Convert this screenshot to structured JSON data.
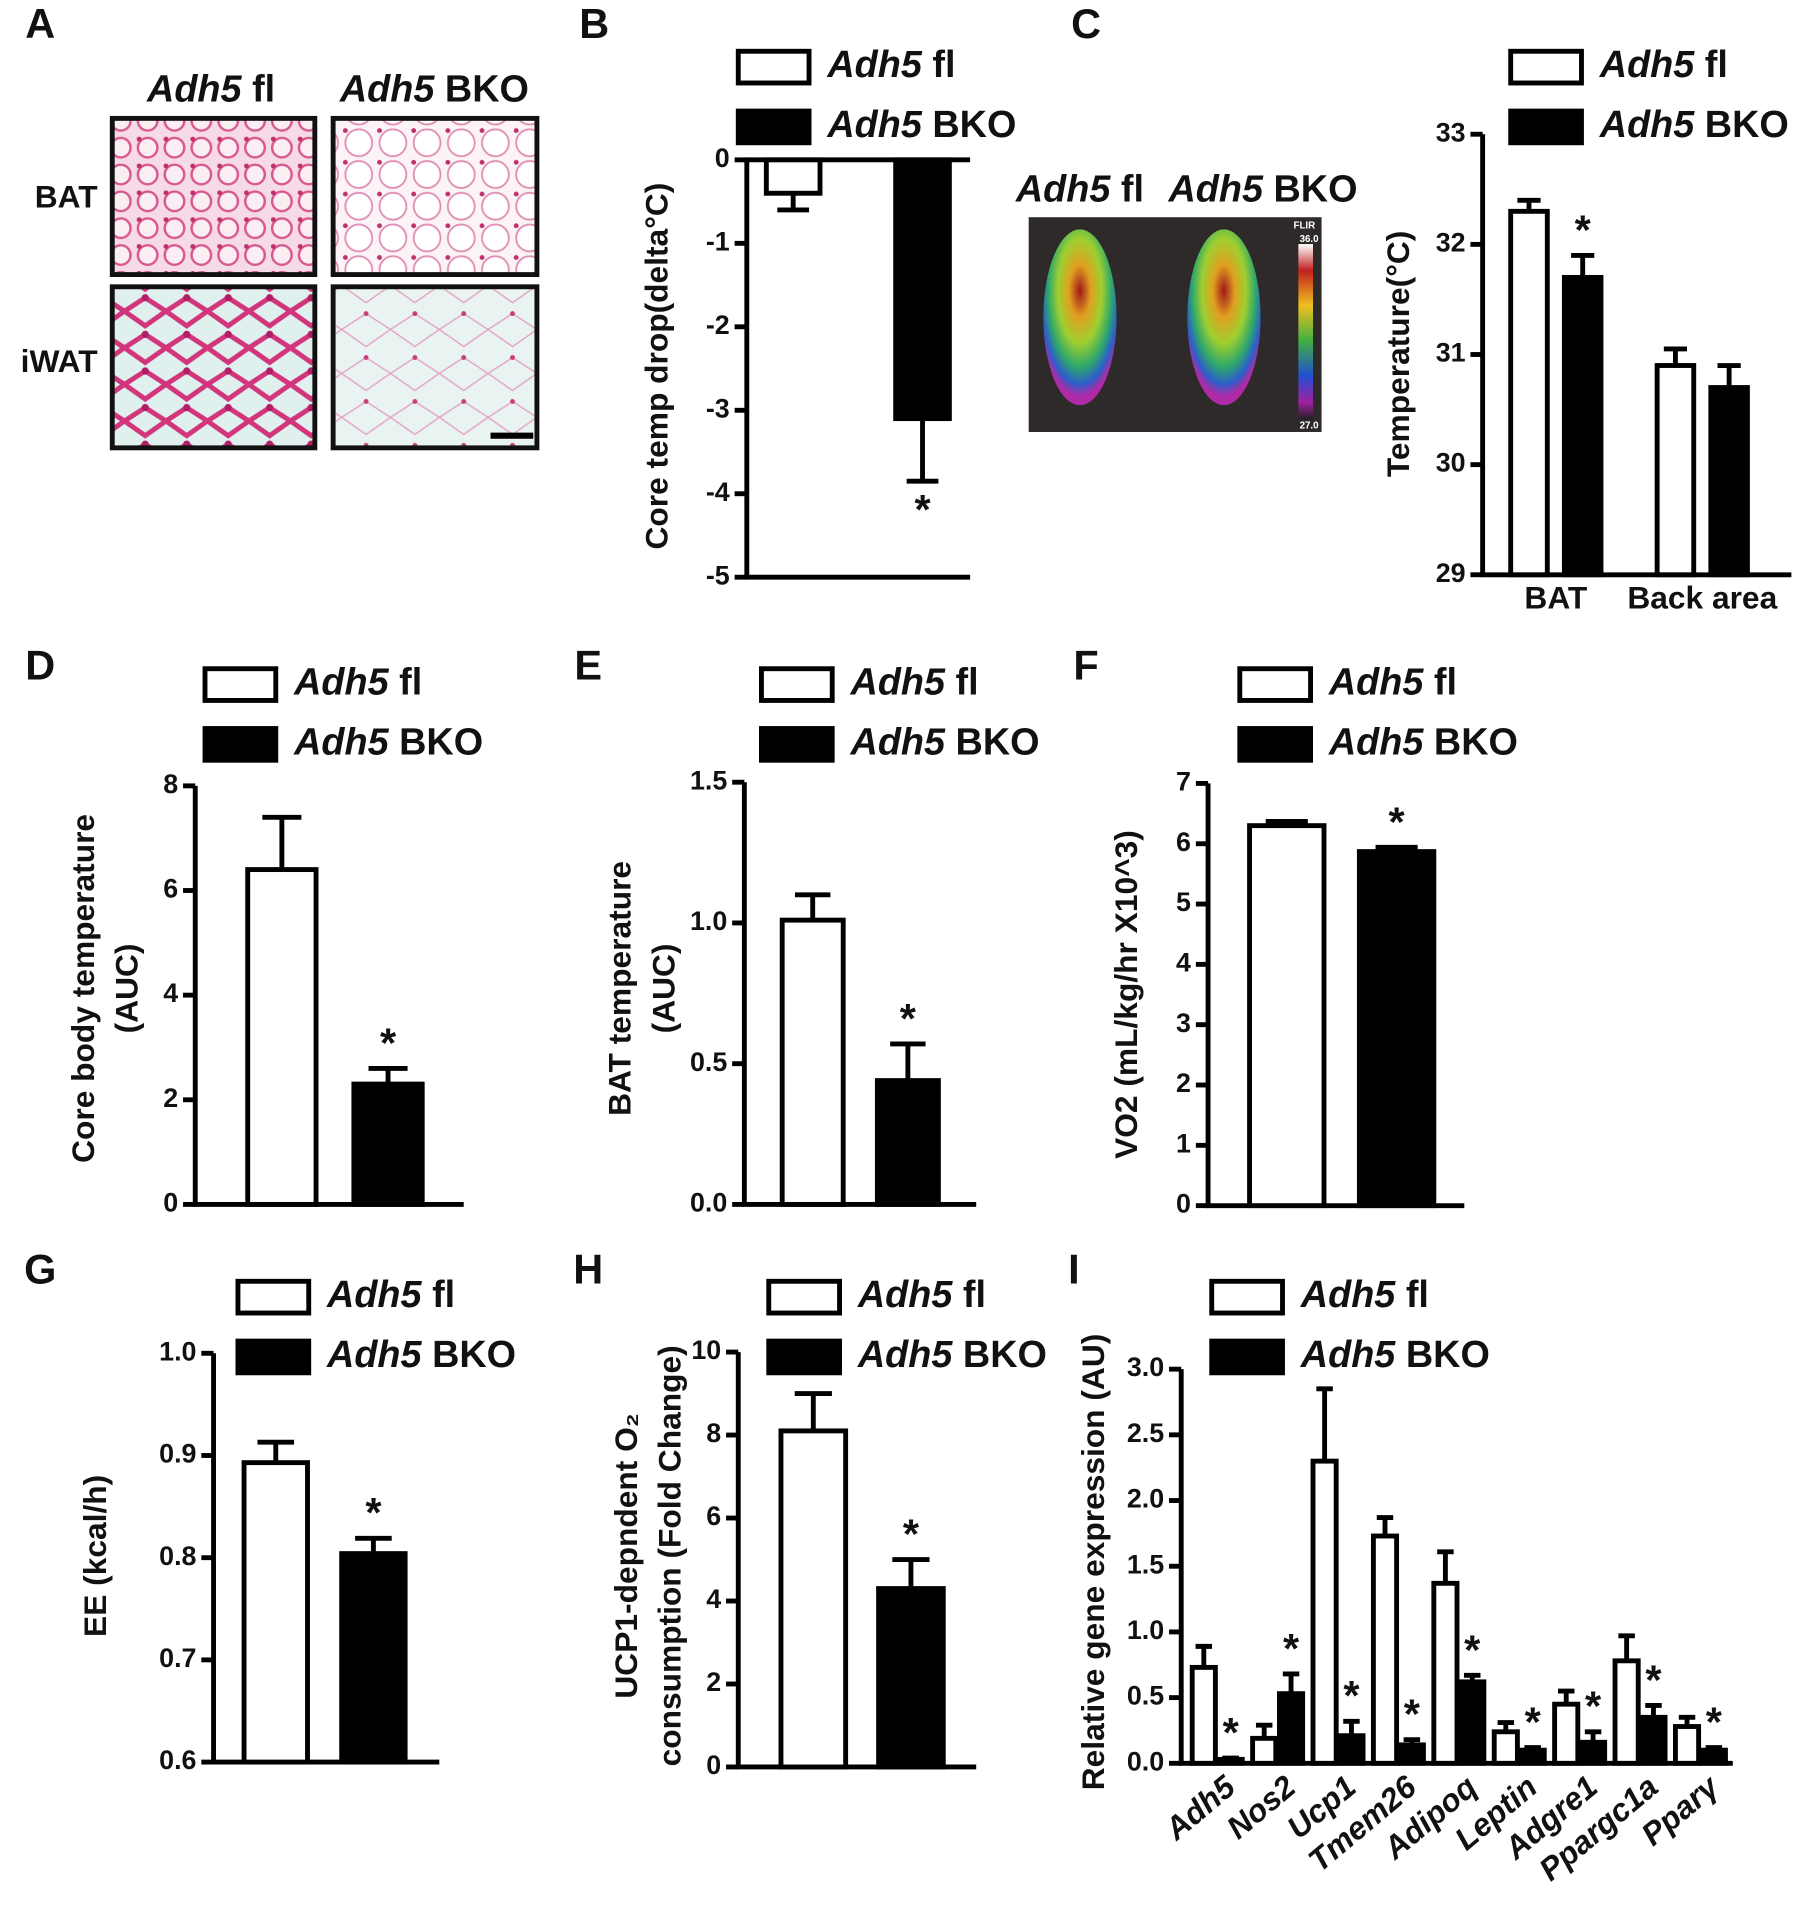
{
  "panel_labels": [
    "A",
    "B",
    "C",
    "D",
    "E",
    "F",
    "G",
    "H",
    "I"
  ],
  "histology": {
    "column_labels": [
      "Adh5 fl",
      "Adh5 BKO"
    ],
    "row_labels": [
      "BAT",
      "iWAT"
    ]
  },
  "thermal_image": {
    "labels": [
      "Adh5 fl",
      "Adh5 BKO"
    ],
    "brand": "FLIR",
    "scale_max": "36.0",
    "scale_min": "27.0"
  },
  "chart_data": [
    {
      "type": "bar",
      "ylabel": "Core temp drop(delta°C)",
      "categories": [
        null
      ],
      "series": [
        {
          "name": "Adh5 fl",
          "color": "#ffffff",
          "values": [
            -0.4
          ],
          "errors": [
            0.2
          ]
        },
        {
          "name": "Adh5 BKO",
          "color": "#000000",
          "values": [
            -3.1
          ],
          "errors": [
            0.75
          ],
          "significance": [
            "*"
          ]
        }
      ],
      "ylim": [
        -5,
        0
      ],
      "yticks": [
        0,
        -1,
        -2,
        -3,
        -4,
        -5
      ]
    },
    {
      "type": "bar",
      "ylabel": "Temperature(°C)",
      "categories": [
        "BAT",
        "Back area"
      ],
      "series": [
        {
          "name": "Adh5 fl",
          "color": "#ffffff",
          "values": [
            32.3,
            30.9
          ],
          "errors": [
            0.1,
            0.15
          ]
        },
        {
          "name": "Adh5 BKO",
          "color": "#000000",
          "values": [
            31.7,
            30.7
          ],
          "errors": [
            0.2,
            0.2
          ],
          "significance": [
            "*",
            null
          ]
        }
      ],
      "ylim": [
        29,
        33
      ],
      "yticks": [
        29,
        30,
        31,
        32,
        33
      ]
    },
    {
      "type": "bar",
      "ylabel": [
        "Core body temperature",
        "(AUC)"
      ],
      "categories": [
        null
      ],
      "series": [
        {
          "name": "Adh5 fl",
          "color": "#ffffff",
          "values": [
            6.4
          ],
          "errors": [
            1.0
          ]
        },
        {
          "name": "Adh5 BKO",
          "color": "#000000",
          "values": [
            2.3
          ],
          "errors": [
            0.3
          ],
          "significance": [
            "*"
          ]
        }
      ],
      "ylim": [
        0,
        8
      ],
      "yticks": [
        0,
        2,
        4,
        6,
        8
      ]
    },
    {
      "type": "bar",
      "ylabel": [
        "BAT temperature",
        "(AUC)"
      ],
      "categories": [
        null
      ],
      "series": [
        {
          "name": "Adh5 fl",
          "color": "#ffffff",
          "values": [
            1.01
          ],
          "errors": [
            0.09
          ]
        },
        {
          "name": "Adh5 BKO",
          "color": "#000000",
          "values": [
            0.44
          ],
          "errors": [
            0.13
          ],
          "significance": [
            "*"
          ]
        }
      ],
      "ylim": [
        0,
        1.5
      ],
      "yticks": [
        {
          "value": 0,
          "label": "0.0"
        },
        0.5,
        {
          "value": 1,
          "label": "1.0"
        },
        1.5
      ]
    },
    {
      "type": "bar",
      "ylabel": "VO2 (mL/kg/hr X10^3)",
      "categories": [
        null
      ],
      "series": [
        {
          "name": "Adh5 fl",
          "color": "#ffffff",
          "values": [
            6.3
          ],
          "errors": [
            0.07
          ]
        },
        {
          "name": "Adh5 BKO",
          "color": "#000000",
          "values": [
            5.87
          ],
          "errors": [
            0.07
          ],
          "significance": [
            "*"
          ]
        }
      ],
      "ylim": [
        0,
        7
      ],
      "yticks": [
        0,
        1,
        2,
        3,
        4,
        5,
        6,
        7
      ]
    },
    {
      "type": "bar",
      "ylabel": "EE (kcal/h)",
      "categories": [
        null
      ],
      "series": [
        {
          "name": "Adh5 fl",
          "color": "#ffffff",
          "values": [
            0.893
          ],
          "errors": [
            0.02
          ]
        },
        {
          "name": "Adh5 BKO",
          "color": "#000000",
          "values": [
            0.804
          ],
          "errors": [
            0.015
          ],
          "significance": [
            "*"
          ]
        }
      ],
      "ylim": [
        0.6,
        1
      ],
      "yticks": [
        0.6,
        0.7,
        0.8,
        0.9,
        {
          "value": 1,
          "label": "1.0"
        }
      ]
    },
    {
      "type": "bar",
      "ylabel": [
        "UCP1-depndent O₂",
        "consumption (Fold Change)"
      ],
      "categories": [
        null
      ],
      "series": [
        {
          "name": "Adh5 fl",
          "color": "#ffffff",
          "values": [
            8.1
          ],
          "errors": [
            0.9
          ]
        },
        {
          "name": "Adh5 BKO",
          "color": "#000000",
          "values": [
            4.3
          ],
          "errors": [
            0.7
          ],
          "significance": [
            "*"
          ]
        }
      ],
      "ylim": [
        0,
        10
      ],
      "yticks": [
        0,
        2,
        4,
        6,
        8,
        10
      ]
    },
    {
      "type": "bar",
      "ylabel": "Relative gene expression (AU)",
      "categories": [
        "Adh5",
        "Nos2",
        "Ucp1",
        "Tmem26",
        "Adipoq",
        "Leptin",
        "Adgre1",
        "Ppargc1a",
        "Pparγ"
      ],
      "series": [
        {
          "name": "Adh5 fl",
          "color": "#ffffff",
          "values": [
            0.73,
            0.19,
            2.3,
            1.73,
            1.37,
            0.24,
            0.45,
            0.78,
            0.28
          ],
          "errors": [
            0.16,
            0.1,
            0.55,
            0.14,
            0.24,
            0.07,
            0.1,
            0.19,
            0.07
          ]
        },
        {
          "name": "Adh5 BKO",
          "color": "#000000",
          "values": [
            0.03,
            0.53,
            0.21,
            0.14,
            0.62,
            0.1,
            0.16,
            0.35,
            0.1
          ],
          "errors": [
            0.01,
            0.15,
            0.11,
            0.04,
            0.05,
            0.02,
            0.08,
            0.09,
            0.02
          ],
          "significance": [
            "*",
            "*",
            "*",
            "*",
            "*",
            "*",
            "*",
            "*",
            "*"
          ]
        }
      ],
      "ylim": [
        0,
        3
      ],
      "yticks": [
        {
          "value": 0,
          "label": "0.0"
        },
        0.5,
        {
          "value": 1,
          "label": "1.0"
        },
        1.5,
        {
          "value": 2,
          "label": "2.0"
        },
        2.5,
        {
          "value": 3,
          "label": "3.0"
        }
      ]
    }
  ]
}
